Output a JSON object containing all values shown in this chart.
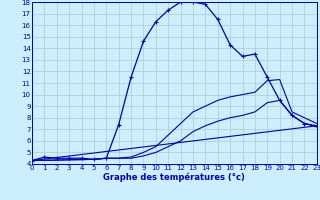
{
  "bg_color": "#cceeff",
  "grid_color": "#aacccc",
  "line_color": "#0000bb",
  "xlabel": "Graphe des températures (°c)",
  "xlim": [
    0,
    23
  ],
  "ylim": [
    4,
    18
  ],
  "xticks": [
    0,
    1,
    2,
    3,
    4,
    5,
    6,
    7,
    8,
    9,
    10,
    11,
    12,
    13,
    14,
    15,
    16,
    17,
    18,
    19,
    20,
    21,
    22,
    23
  ],
  "yticks": [
    4,
    5,
    6,
    7,
    8,
    9,
    10,
    11,
    12,
    13,
    14,
    15,
    16,
    17,
    18
  ],
  "curve_main": {
    "x": [
      0,
      1,
      2,
      3,
      4,
      5,
      6,
      7,
      8,
      9,
      10,
      11,
      12,
      13,
      14,
      15,
      16,
      17,
      18,
      19,
      20,
      21,
      22,
      23
    ],
    "y": [
      4.3,
      4.6,
      4.5,
      4.5,
      4.5,
      4.4,
      4.5,
      7.4,
      11.5,
      14.6,
      16.3,
      17.3,
      18.0,
      18.0,
      17.8,
      16.5,
      14.3,
      13.3,
      13.5,
      11.5,
      9.5,
      8.2,
      7.5,
      7.3
    ]
  },
  "curve_high": {
    "x": [
      0,
      5,
      6,
      7,
      8,
      9,
      10,
      11,
      12,
      13,
      14,
      15,
      16,
      17,
      18,
      19,
      20,
      21,
      22,
      23
    ],
    "y": [
      4.3,
      4.4,
      4.5,
      4.5,
      4.6,
      5.0,
      5.5,
      6.5,
      7.5,
      8.5,
      9.0,
      9.5,
      9.8,
      10.0,
      10.2,
      11.2,
      11.3,
      8.5,
      8.0,
      7.5
    ]
  },
  "curve_mid": {
    "x": [
      0,
      5,
      6,
      7,
      8,
      9,
      10,
      11,
      12,
      13,
      14,
      15,
      16,
      17,
      18,
      19,
      20,
      21,
      22,
      23
    ],
    "y": [
      4.3,
      4.4,
      4.5,
      4.5,
      4.5,
      4.7,
      5.0,
      5.5,
      6.0,
      6.8,
      7.3,
      7.7,
      8.0,
      8.2,
      8.5,
      9.3,
      9.5,
      8.2,
      7.5,
      7.2
    ]
  },
  "curve_low": {
    "x": [
      0,
      23
    ],
    "y": [
      4.3,
      7.3
    ]
  }
}
